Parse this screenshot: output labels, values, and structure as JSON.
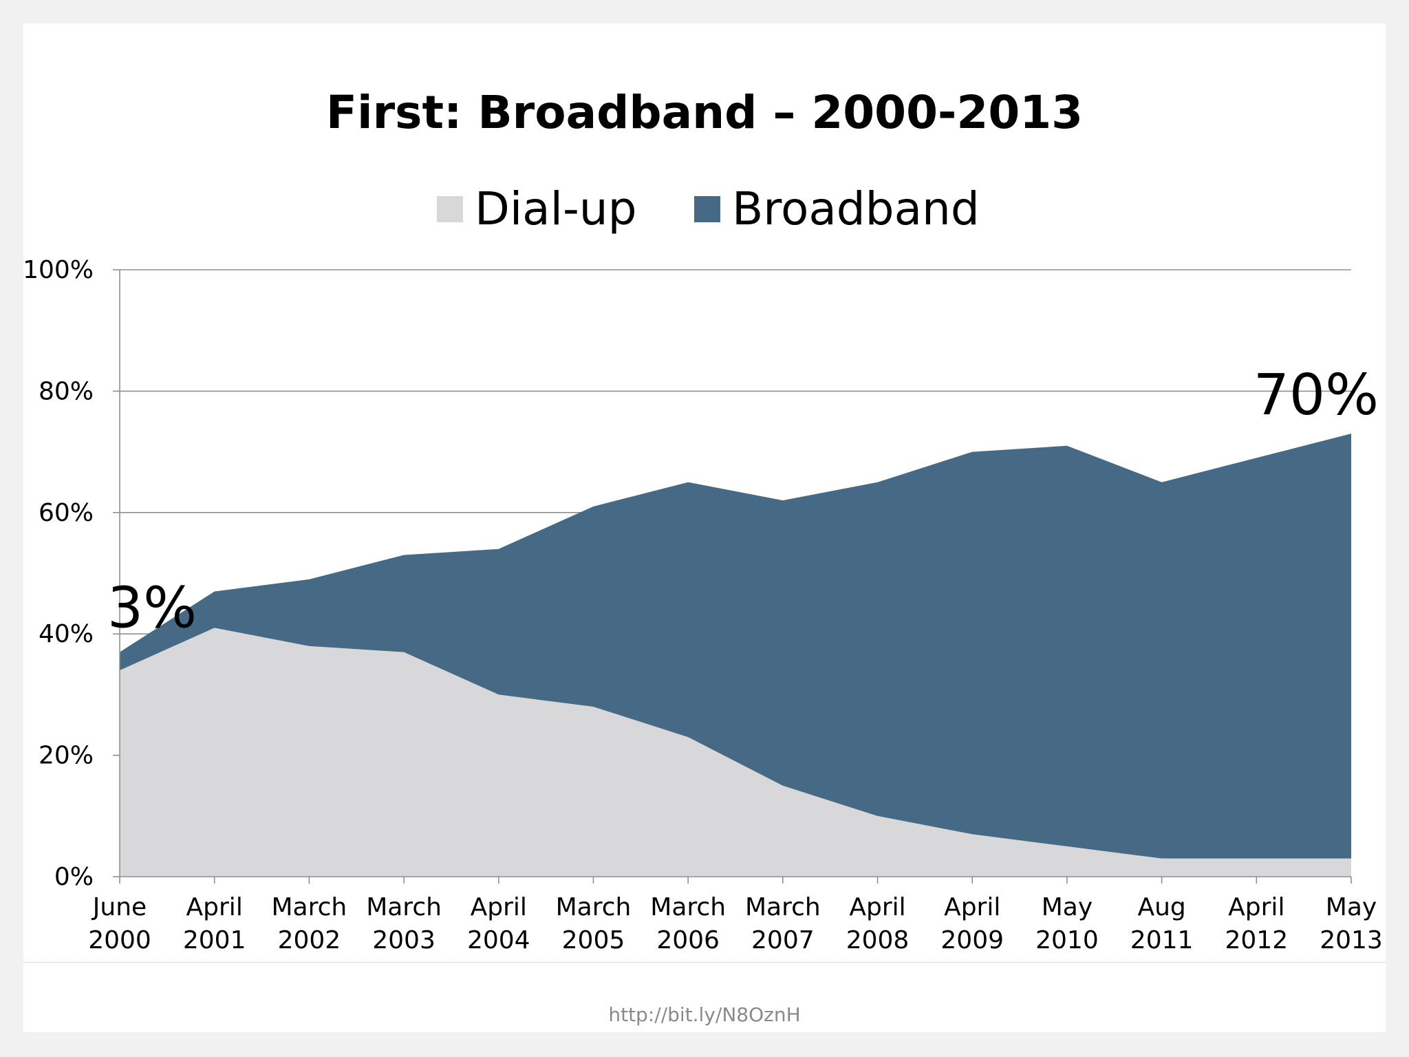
{
  "chart_data": {
    "type": "area",
    "stacked": true,
    "title": "First: Broadband – 2000-2013",
    "categories": [
      [
        "June",
        "2000"
      ],
      [
        "April",
        "2001"
      ],
      [
        "March",
        "2002"
      ],
      [
        "March",
        "2003"
      ],
      [
        "April",
        "2004"
      ],
      [
        "March",
        "2005"
      ],
      [
        "March",
        "2006"
      ],
      [
        "March",
        "2007"
      ],
      [
        "April",
        "2008"
      ],
      [
        "April",
        "2009"
      ],
      [
        "May",
        "2010"
      ],
      [
        "Aug",
        "2011"
      ],
      [
        "April",
        "2012"
      ],
      [
        "May",
        "2013"
      ]
    ],
    "series": [
      {
        "name": "Dial-up",
        "color": "#d8d8da",
        "values": [
          34,
          41,
          38,
          37,
          30,
          28,
          23,
          15,
          10,
          7,
          5,
          3,
          3,
          3
        ]
      },
      {
        "name": "Broadband",
        "color": "#466985",
        "values": [
          3,
          6,
          11,
          16,
          24,
          33,
          42,
          47,
          55,
          63,
          66,
          62,
          66,
          70
        ]
      }
    ],
    "ylim": [
      0,
      100
    ],
    "yticks": [
      0,
      20,
      40,
      60,
      80,
      100
    ],
    "ytick_suffix": "%",
    "grid": true,
    "legend_position": "top",
    "annotations": [
      {
        "text": "3%",
        "series": "Broadband",
        "index": 0
      },
      {
        "text": "70%",
        "series": "Broadband",
        "index": 13
      }
    ]
  },
  "footer": {
    "link": "http://bit.ly/N8OznH"
  }
}
